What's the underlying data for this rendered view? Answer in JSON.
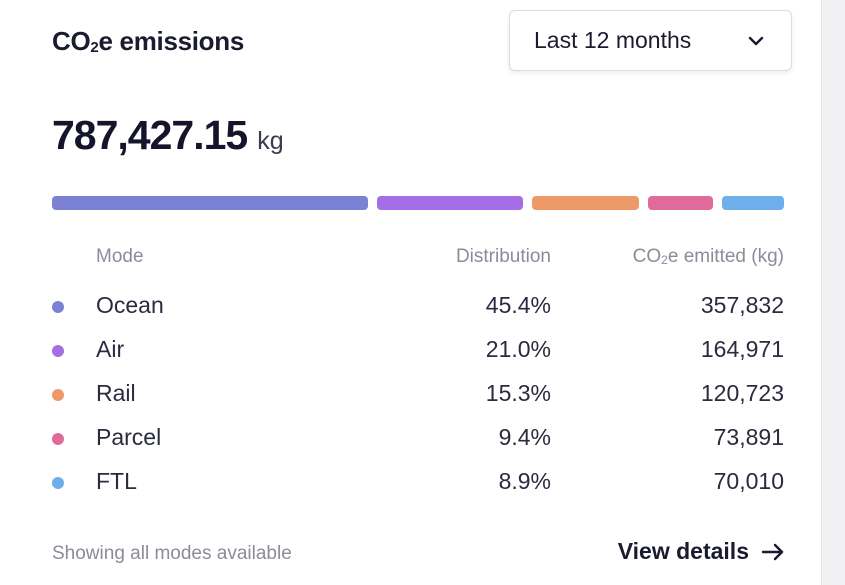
{
  "card": {
    "title_main": "CO",
    "title_sub": "2",
    "title_rest": "e emissions",
    "range": {
      "selected": "Last 12 months",
      "icon": "chevron-down-icon"
    },
    "total": {
      "value": "787,427.15",
      "unit": "kg"
    },
    "colors": {
      "Ocean": "#7b82d6",
      "Air": "#a56ee6",
      "Rail": "#ee9a68",
      "Parcel": "#e06b9a",
      "FTL": "#6eaeea"
    },
    "distribution_fractions": [
      0.454,
      0.21,
      0.153,
      0.094,
      0.089
    ],
    "table": {
      "headers": {
        "mode": "Mode",
        "distribution": "Distribution",
        "co2_main": "CO",
        "co2_sub": "2",
        "co2_rest": "e emitted (kg)"
      },
      "rows": [
        {
          "mode": "Ocean",
          "distribution": "45.4%",
          "co2": "357,832"
        },
        {
          "mode": "Air",
          "distribution": "21.0%",
          "co2": "164,971"
        },
        {
          "mode": "Rail",
          "distribution": "15.3%",
          "co2": "120,723"
        },
        {
          "mode": "Parcel",
          "distribution": "9.4%",
          "co2": "73,891"
        },
        {
          "mode": "FTL",
          "distribution": "8.9%",
          "co2": "70,010"
        }
      ]
    },
    "footer": {
      "note": "Showing all modes available",
      "link": "View details",
      "link_icon": "arrow-right-icon"
    }
  }
}
